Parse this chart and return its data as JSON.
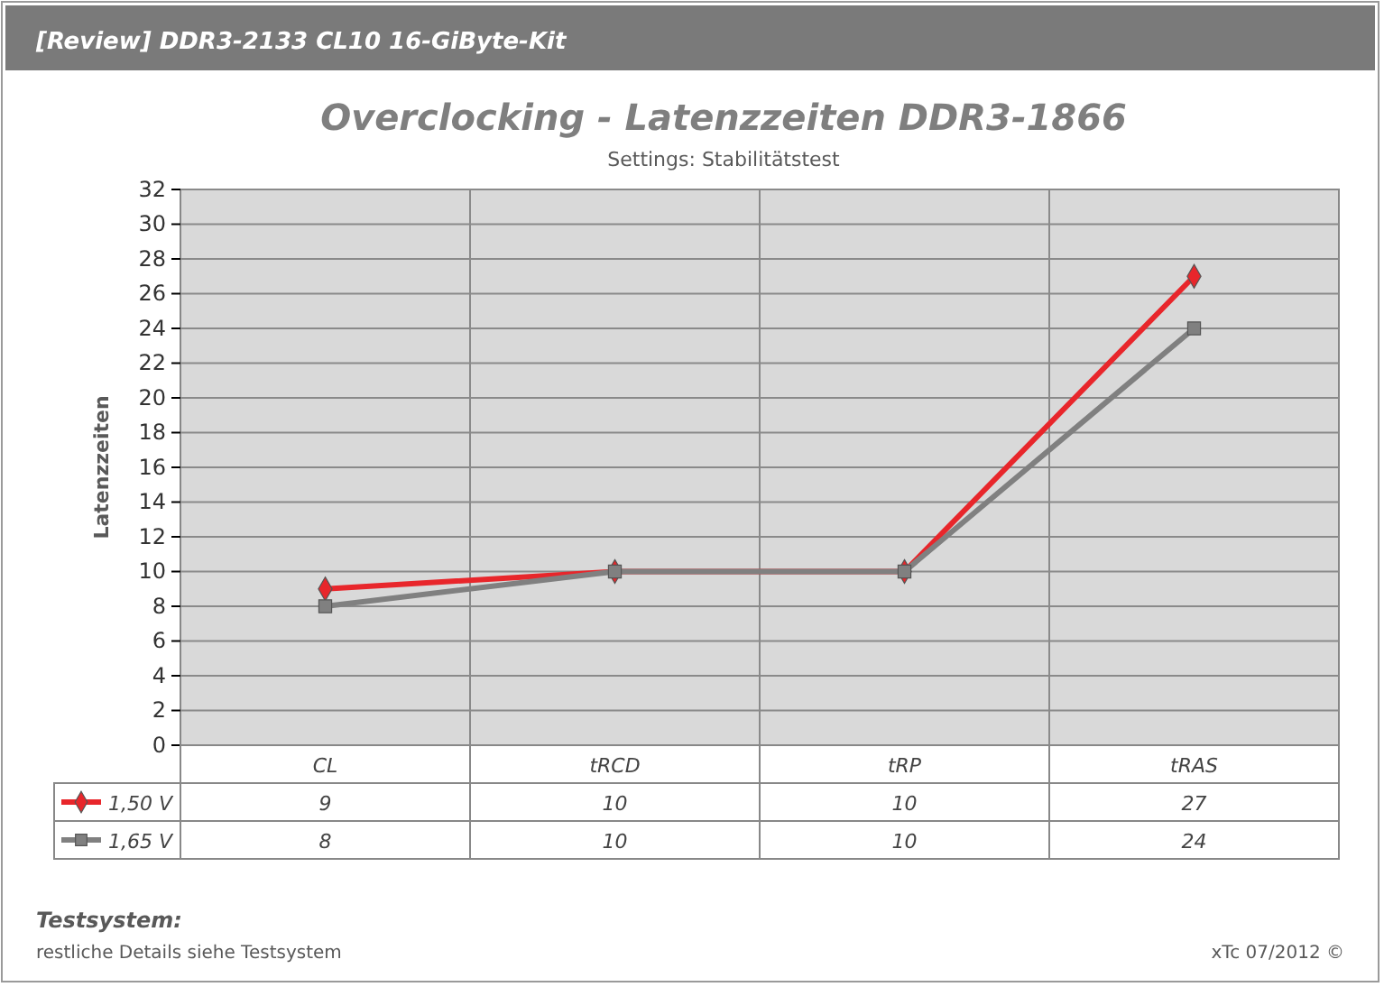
{
  "chart_data": {
    "type": "line",
    "title": "Overclocking - Latenzzeiten DDR3-1866",
    "subtitle": "Settings: Stabilitätstest",
    "ylabel": "Latenzzeiten",
    "annotations": [
      "[Review] DDR3-2133 CL10 16-GiByte-Kit",
      "Testsystem:",
      "restliche Details siehe Testsystem",
      "xTc 07/2012 ©"
    ],
    "categories": [
      "CL",
      "tRCD",
      "tRP",
      "tRAS"
    ],
    "series": [
      {
        "name": "1,50 V",
        "color": "#e8262b",
        "marker": "diamond",
        "values": [
          9,
          10,
          10,
          27
        ]
      },
      {
        "name": "1,65 V",
        "color": "#808080",
        "marker": "square",
        "values": [
          8,
          10,
          10,
          24
        ]
      }
    ],
    "ylim": [
      0,
      32
    ],
    "yticks": [
      0,
      2,
      4,
      6,
      8,
      10,
      12,
      14,
      16,
      18,
      20,
      22,
      24,
      26,
      28,
      30,
      32
    ],
    "grid": true,
    "legend": "bottom",
    "data_labels": true,
    "line_style": "solid"
  }
}
